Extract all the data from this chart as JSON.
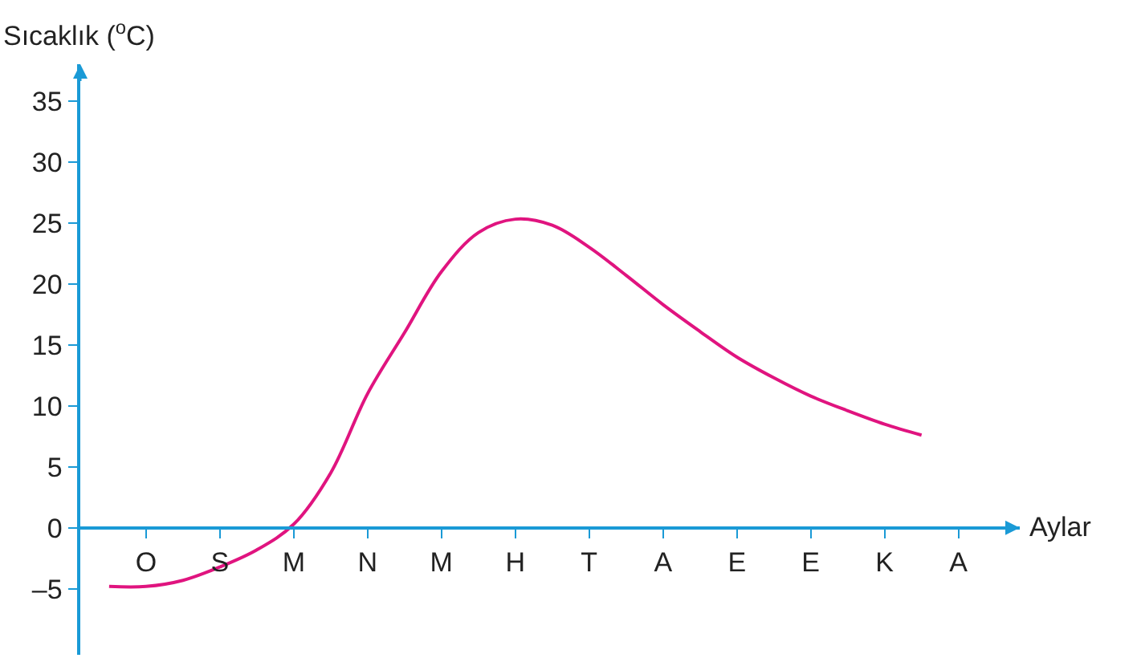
{
  "chart_data": {
    "type": "line",
    "xlabel": "Aylar",
    "ylabel": "Sıcaklık ($^{o}$C)",
    "categories": [
      null,
      "O",
      null,
      "S",
      null,
      "M",
      null,
      "N",
      null,
      "M",
      null,
      "H",
      null,
      "T",
      null,
      "A",
      null,
      "E",
      null,
      "E",
      null,
      "K",
      null,
      "A"
    ],
    "series": [
      {
        "color": "#e0147f",
        "values": [
          -4.8,
          -4.8,
          -4.3,
          -3.2,
          -1.8,
          0.3,
          4.5,
          11,
          16,
          21,
          24.2,
          25.3,
          24.8,
          23,
          20.7,
          18.3,
          16.1,
          14,
          12.3,
          10.8,
          9.6,
          8.5,
          7.6,
          null
        ]
      }
    ],
    "ylim": [
      -10.4,
      38
    ],
    "yticks": [
      {
        "value": -5,
        "label": "–5"
      },
      0,
      5,
      10,
      15,
      20,
      25,
      30,
      35
    ],
    "legend": false,
    "marker": "none",
    "line_style": "solid"
  }
}
